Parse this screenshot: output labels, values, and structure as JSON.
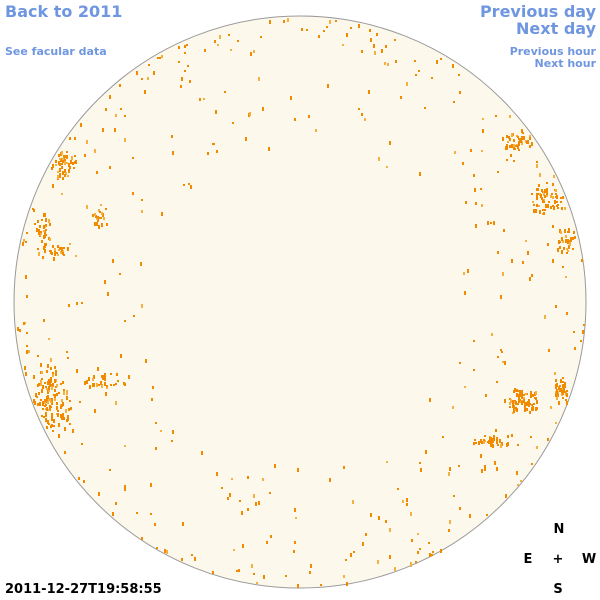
{
  "nav": {
    "back": "Back to 2011",
    "facular": "See facular data",
    "previous_day": "Previous day",
    "next_day": "Next day",
    "previous_hour": "Previous hour",
    "next_hour": "Next hour"
  },
  "timestamp": "2011-12-27T19:58:55",
  "compass": {
    "north": "N",
    "east": "E",
    "center": "+",
    "west": "W",
    "south": "S"
  }
}
